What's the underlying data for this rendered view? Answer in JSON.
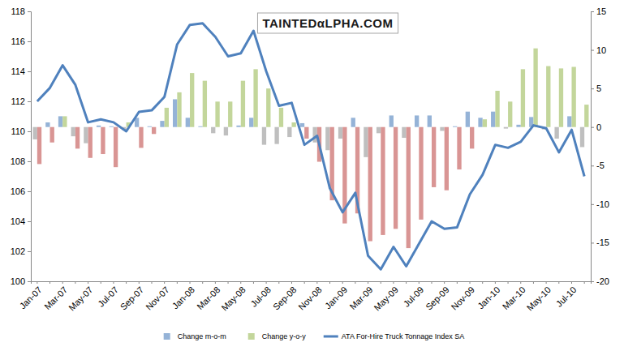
{
  "chart_data": {
    "type": "bar",
    "title": "TAINTEDαLPHA.COM",
    "categories": [
      "Jan-07",
      null,
      "Mar-07",
      null,
      "May-07",
      null,
      "Jul-07",
      null,
      "Sep-07",
      null,
      "Nov-07",
      null,
      "Jan-08",
      null,
      "Mar-08",
      null,
      "May-08",
      null,
      "Jul-08",
      null,
      "Sep-08",
      null,
      "Nov-08",
      null,
      "Jan-09",
      null,
      "Mar-09",
      null,
      "May-09",
      null,
      "Jul-09",
      null,
      "Sep-09",
      null,
      "Nov-09",
      null,
      "Jan-10",
      null,
      "Mar-10",
      null,
      "May-10",
      null,
      "Jul-10",
      null
    ],
    "series": [
      {
        "name": "Change m-o-m",
        "type": "bar",
        "axis": "y2",
        "color": "#95b3d7",
        "values": [
          -1.6,
          0.6,
          1.4,
          -1.2,
          -2.1,
          0.2,
          0.1,
          -0.4,
          1.2,
          0.1,
          0.8,
          3.6,
          1.2,
          0.1,
          -0.8,
          -1.1,
          0.2,
          1.2,
          -2.3,
          -2.2,
          -1.3,
          0.5,
          -2.0,
          -3.0,
          -1.5,
          1.2,
          -3.9,
          -0.8,
          1.5,
          -1.4,
          1.5,
          1.5,
          -0.5,
          0.1,
          2.0,
          1.2,
          2.0,
          -0.2,
          0.3,
          1.3,
          -0.3,
          -1.5,
          1.4,
          -2.6
        ],
        "colors": [
          "#bfbfbf",
          "#95b3d7",
          "#95b3d7",
          "#bfbfbf",
          "#bfbfbf",
          "#95b3d7",
          "#95b3d7",
          "#bfbfbf",
          "#95b3d7",
          "#95b3d7",
          "#95b3d7",
          "#95b3d7",
          "#95b3d7",
          "#95b3d7",
          "#bfbfbf",
          "#bfbfbf",
          "#95b3d7",
          "#95b3d7",
          "#bfbfbf",
          "#bfbfbf",
          "#bfbfbf",
          "#95b3d7",
          "#bfbfbf",
          "#bfbfbf",
          "#bfbfbf",
          "#95b3d7",
          "#bfbfbf",
          "#bfbfbf",
          "#95b3d7",
          "#bfbfbf",
          "#95b3d7",
          "#95b3d7",
          "#bfbfbf",
          "#95b3d7",
          "#95b3d7",
          "#95b3d7",
          "#95b3d7",
          "#bfbfbf",
          "#95b3d7",
          "#95b3d7",
          "#bfbfbf",
          "#bfbfbf",
          "#95b3d7",
          "#bfbfbf"
        ]
      },
      {
        "name": "Change y-o-y",
        "type": "bar",
        "axis": "y2",
        "color": "#c3d69b",
        "values": [
          -4.8,
          -2.0,
          1.4,
          -2.8,
          -4.0,
          -3.5,
          -5.2,
          0.6,
          -2.7,
          -0.9,
          2.5,
          4.5,
          7.0,
          6.0,
          3.3,
          3.3,
          6.0,
          7.5,
          5.0,
          2.5,
          0.6,
          -1.5,
          -4.5,
          -9.5,
          -12.5,
          -11.2,
          -14.8,
          -14.0,
          -13.2,
          -15.7,
          -12.0,
          -7.8,
          -8.2,
          -5.5,
          -2.8,
          1.0,
          4.7,
          3.3,
          7.5,
          10.2,
          7.9,
          7.6,
          7.8,
          2.9
        ],
        "colors": [
          "#d99594",
          "#d99594",
          "#c3d69b",
          "#d99594",
          "#d99594",
          "#d99594",
          "#d99594",
          "#c3d69b",
          "#d99594",
          "#d99594",
          "#c3d69b",
          "#c3d69b",
          "#c3d69b",
          "#c3d69b",
          "#c3d69b",
          "#c3d69b",
          "#c3d69b",
          "#c3d69b",
          "#c3d69b",
          "#c3d69b",
          "#c3d69b",
          "#d99594",
          "#d99594",
          "#d99594",
          "#d99594",
          "#d99594",
          "#d99594",
          "#d99594",
          "#d99594",
          "#d99594",
          "#d99594",
          "#d99594",
          "#d99594",
          "#d99594",
          "#d99594",
          "#c3d69b",
          "#c3d69b",
          "#c3d69b",
          "#c3d69b",
          "#c3d69b",
          "#c3d69b",
          "#c3d69b",
          "#c3d69b",
          "#c3d69b"
        ]
      },
      {
        "name": "ATA For-Hire Truck Tonnage Index SA",
        "type": "line",
        "color": "#4f81bd",
        "values": [
          112.0,
          112.9,
          114.4,
          113.1,
          110.6,
          110.8,
          110.6,
          110.0,
          111.3,
          111.4,
          112.3,
          115.8,
          117.1,
          117.2,
          116.3,
          115.0,
          115.2,
          116.7,
          114.0,
          111.7,
          111.9,
          109.1,
          109.7,
          106.2,
          104.6,
          105.9,
          101.7,
          100.8,
          102.3,
          101.0,
          102.5,
          104.0,
          103.5,
          103.6,
          105.8,
          107.1,
          109.1,
          108.9,
          109.3,
          110.4,
          110.2,
          108.6,
          110.1,
          107.0
        ]
      }
    ],
    "ylim": [
      100,
      118
    ],
    "yticks": [
      100,
      102,
      104,
      106,
      108,
      110,
      112,
      114,
      116,
      118
    ],
    "y2lim": [
      -20,
      15
    ],
    "y2ticks": [
      -20,
      -15,
      -10,
      -5,
      0,
      5,
      10,
      15
    ],
    "legend": "bottom",
    "grid": false
  }
}
